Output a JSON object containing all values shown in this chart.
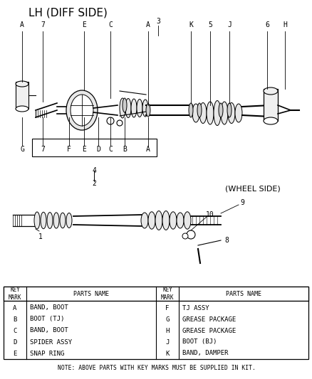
{
  "title": "LH (DIFF SIDE)",
  "wheel_side_label": "(WHEEL SIDE)",
  "bg_color": "#ffffff",
  "text_color": "#000000",
  "title_fontsize": 11,
  "label_fontsize": 7,
  "table_header": [
    "KEY\nMARK",
    "PARTS NAME",
    "KEY\nMARK",
    "PARTS NAME"
  ],
  "table_rows_left": [
    [
      "A",
      "BAND, BOOT"
    ],
    [
      "B",
      "BOOT (TJ)"
    ],
    [
      "C",
      "BAND, BOOT"
    ],
    [
      "D",
      "SPIDER ASSY"
    ],
    [
      "E",
      "SNAP RING"
    ]
  ],
  "table_rows_right": [
    [
      "F",
      "TJ ASSY"
    ],
    [
      "G",
      "GREASE PACKAGE"
    ],
    [
      "H",
      "GREASE PACKAGE"
    ],
    [
      "J",
      "BOOT (BJ)"
    ],
    [
      "K",
      "BAND, DAMPER"
    ]
  ],
  "note": "NOTE: ABOVE PARTS WITH KEY MARKS MUST BE SUPPLIED IN KIT.",
  "callout_labels_top": [
    "A",
    "7",
    "E",
    "C",
    "A",
    "3",
    "K",
    "5",
    "J",
    "6",
    "H"
  ],
  "callout_labels_bottom": [
    "G",
    "7",
    "F",
    "E",
    "D",
    "C",
    "B",
    "A"
  ],
  "box_label": "4",
  "box_label2": "2",
  "label_1": "1",
  "label_8": "8",
  "label_9": "9",
  "label_10": "10"
}
